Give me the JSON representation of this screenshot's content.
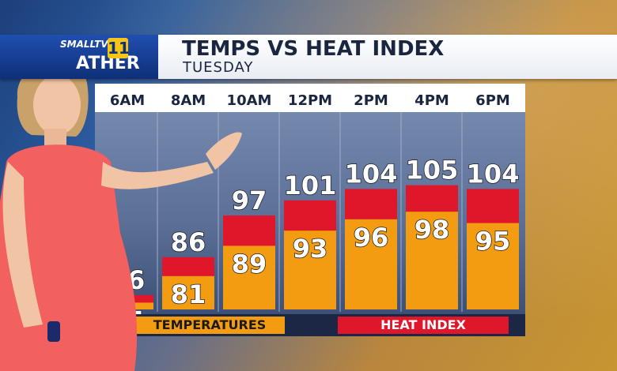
{
  "header": {
    "title": "TEMPS VS HEAT INDEX",
    "subtitle": "TUESDAY",
    "logo_top": "SMALLTV",
    "logo_bottom": "ATHER",
    "logo_badge": "11"
  },
  "legend": {
    "temperatures": "TEMPERATURES",
    "heat_index": "HEAT INDEX"
  },
  "colors": {
    "temperature": "#f39c12",
    "heat_index": "#e0162b",
    "header_bg": "#ffffff",
    "logo_blue": "#0f2f78"
  },
  "chart_data": {
    "type": "bar",
    "title": "TEMPS VS HEAT INDEX",
    "subtitle": "TUESDAY",
    "categories": [
      "6AM",
      "8AM",
      "10AM",
      "12PM",
      "2PM",
      "4PM",
      "6PM"
    ],
    "series": [
      {
        "name": "TEMPERATURES",
        "values": [
          74,
          81,
          89,
          93,
          96,
          98,
          95
        ]
      },
      {
        "name": "HEAT INDEX",
        "values": [
          76,
          86,
          97,
          101,
          104,
          105,
          104
        ]
      }
    ],
    "ylim": [
      60,
      110
    ],
    "grid": false,
    "legend": "bottom"
  }
}
